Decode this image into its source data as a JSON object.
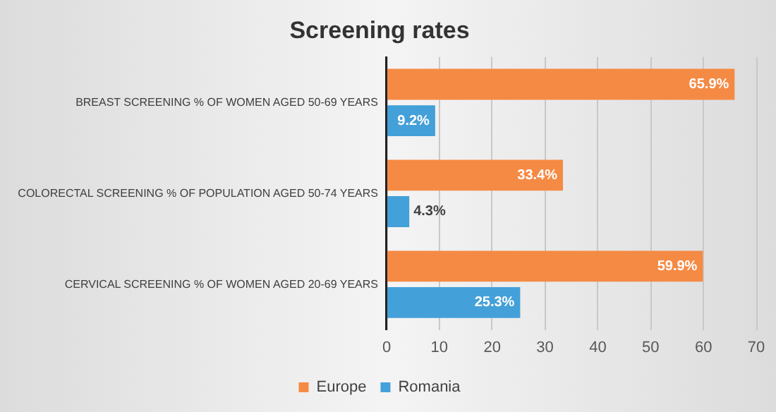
{
  "chart_data": {
    "type": "bar",
    "orientation": "horizontal",
    "title": "Screening rates",
    "categories": [
      "BREAST SCREENING % OF WOMEN AGED 50-69 YEARS",
      "COLORECTAL SCREENING % OF POPULATION AGED 50-74 YEARS",
      "CERVICAL SCREENING % OF WOMEN AGED 20-69 YEARS"
    ],
    "series": [
      {
        "name": "Europe",
        "color": "#f58a44",
        "values": [
          65.9,
          33.4,
          59.9
        ],
        "value_labels": [
          "65.9%",
          "33.4%",
          "59.9%"
        ]
      },
      {
        "name": "Romania",
        "color": "#44a0d8",
        "values": [
          9.2,
          4.3,
          25.3
        ],
        "value_labels": [
          "9.2%",
          "4.3%",
          "25.3%"
        ]
      }
    ],
    "xlim": [
      0,
      70
    ],
    "xticks": [
      0,
      10,
      20,
      30,
      40,
      50,
      60,
      70
    ],
    "grid": "x",
    "legend": "bottom"
  }
}
